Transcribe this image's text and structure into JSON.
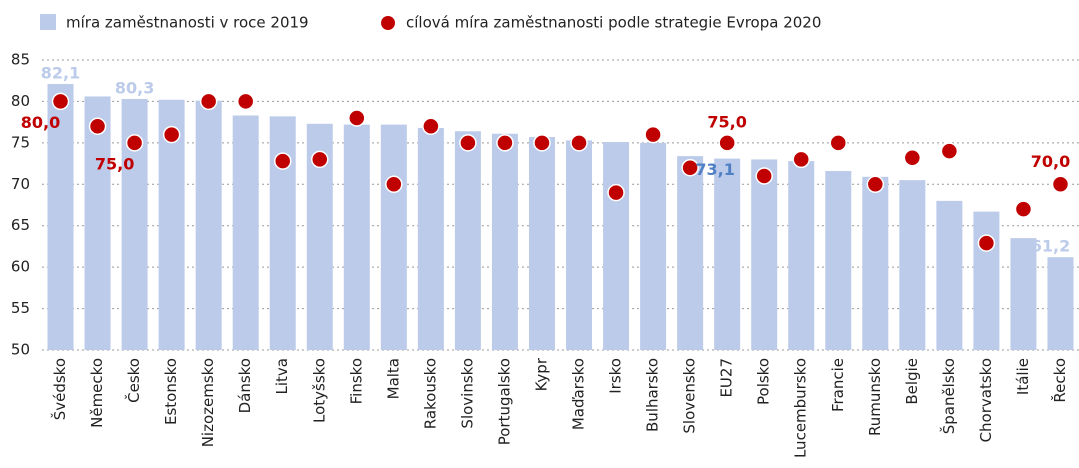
{
  "chart_data": {
    "type": "bar",
    "categories": [
      "Švédsko",
      "Německo",
      "Česko",
      "Estonsko",
      "Nizozemsko",
      "Dánsko",
      "Litva",
      "Lotyšsko",
      "Finsko",
      "Malta",
      "Rakousko",
      "Slovinsko",
      "Portugalsko",
      "Kypr",
      "Maďarsko",
      "Irsko",
      "Bulharsko",
      "Slovensko",
      "EU27",
      "Polsko",
      "Lucembursko",
      "Francie",
      "Rumunsko",
      "Belgie",
      "Španělsko",
      "Chorvatsko",
      "Itálie",
      "Řecko"
    ],
    "series": [
      {
        "name": "míra zaměstnanosti v roce 2019",
        "type": "bar",
        "color": "#bccbea",
        "values": [
          82.1,
          80.6,
          80.3,
          80.2,
          80.1,
          78.3,
          78.2,
          77.3,
          77.2,
          77.2,
          76.8,
          76.4,
          76.1,
          75.7,
          75.3,
          75.1,
          75.0,
          73.4,
          73.1,
          73.0,
          72.8,
          71.6,
          70.9,
          70.5,
          68.0,
          66.7,
          63.5,
          61.2
        ],
        "value_labels": [
          "82,1",
          null,
          "80,3",
          null,
          null,
          null,
          null,
          null,
          null,
          null,
          null,
          null,
          null,
          null,
          null,
          null,
          null,
          null,
          "73,1",
          null,
          null,
          null,
          null,
          null,
          null,
          null,
          null,
          "61,2"
        ]
      },
      {
        "name": "cílová míra zaměstnanosti podle strategie Evropa 2020",
        "type": "scatter",
        "color": "#c00000",
        "values": [
          80,
          77,
          75,
          76,
          80,
          80,
          72.8,
          73,
          78,
          70,
          77,
          75,
          75,
          75,
          75,
          69,
          76,
          72,
          75,
          71,
          73,
          75,
          70,
          73.2,
          74,
          62.9,
          67,
          70
        ],
        "value_labels": [
          "80,0",
          null,
          "75,0",
          null,
          null,
          null,
          null,
          null,
          null,
          null,
          null,
          null,
          null,
          null,
          null,
          null,
          null,
          null,
          "75,0",
          null,
          null,
          null,
          null,
          null,
          null,
          null,
          null,
          "70,0"
        ]
      }
    ],
    "ylim": [
      50,
      85
    ],
    "yticks": [
      50,
      55,
      60,
      65,
      70,
      75,
      80,
      85
    ],
    "grid": true
  }
}
